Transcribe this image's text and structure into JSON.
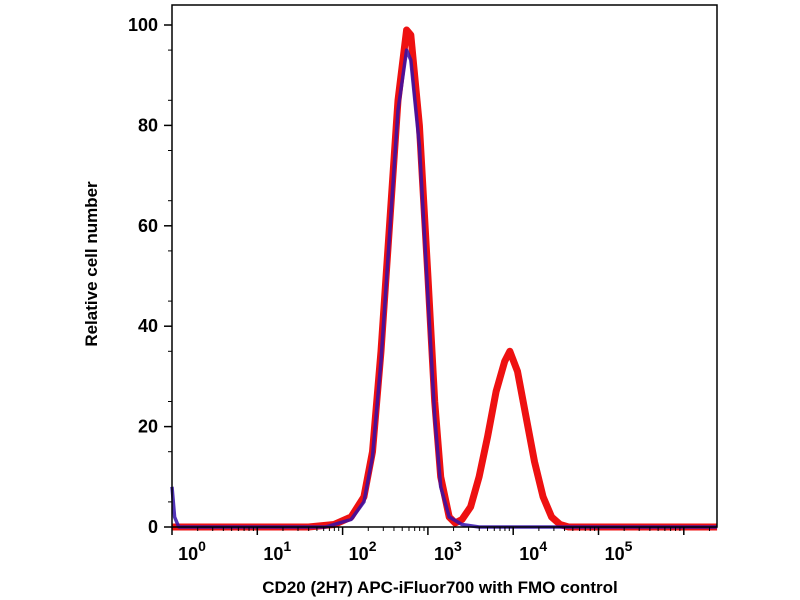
{
  "chart_data": {
    "type": "line",
    "title": "",
    "xlabel": "CD20 (2H7) APC-iFluor700 with FMO control",
    "ylabel": "Relative cell number",
    "xscale": "log",
    "xlim_log10": [
      0,
      6.39
    ],
    "ylim": [
      0,
      100
    ],
    "yticks": [
      "0",
      "20",
      "40",
      "60",
      "80",
      "100"
    ],
    "xticks": [
      {
        "base": "10",
        "exp": "0"
      },
      {
        "base": "10",
        "exp": "1"
      },
      {
        "base": "10",
        "exp": "2"
      },
      {
        "base": "10",
        "exp": "3"
      },
      {
        "base": "10",
        "exp": "4"
      },
      {
        "base": "10",
        "exp": "5"
      }
    ],
    "grid": false,
    "series": [
      {
        "name": "CD20 (2H7) APC-iFluor700",
        "color": "#ee1111",
        "points_log10x_y": [
          [
            0,
            0
          ],
          [
            1.6,
            0
          ],
          [
            1.9,
            0.5
          ],
          [
            2.1,
            2
          ],
          [
            2.25,
            6
          ],
          [
            2.35,
            15
          ],
          [
            2.45,
            35
          ],
          [
            2.55,
            60
          ],
          [
            2.65,
            85
          ],
          [
            2.75,
            99
          ],
          [
            2.8,
            98
          ],
          [
            2.9,
            80
          ],
          [
            3.0,
            50
          ],
          [
            3.08,
            25
          ],
          [
            3.15,
            10
          ],
          [
            3.25,
            2
          ],
          [
            3.32,
            0.8
          ],
          [
            3.4,
            1.5
          ],
          [
            3.5,
            4
          ],
          [
            3.6,
            10
          ],
          [
            3.7,
            18
          ],
          [
            3.8,
            27
          ],
          [
            3.9,
            33
          ],
          [
            3.96,
            35
          ],
          [
            4.05,
            31
          ],
          [
            4.15,
            22
          ],
          [
            4.25,
            13
          ],
          [
            4.35,
            6
          ],
          [
            4.45,
            2
          ],
          [
            4.55,
            0.5
          ],
          [
            4.65,
            0
          ],
          [
            6.39,
            0
          ]
        ]
      },
      {
        "name": "FMO control",
        "color": "#3311aa",
        "points_log10x_y": [
          [
            0,
            8
          ],
          [
            0.03,
            2
          ],
          [
            0.08,
            0
          ],
          [
            1.8,
            0
          ],
          [
            2.1,
            1.5
          ],
          [
            2.25,
            5
          ],
          [
            2.35,
            14
          ],
          [
            2.45,
            33
          ],
          [
            2.55,
            58
          ],
          [
            2.65,
            83
          ],
          [
            2.75,
            95
          ],
          [
            2.8,
            93
          ],
          [
            2.9,
            76
          ],
          [
            3.0,
            46
          ],
          [
            3.08,
            22
          ],
          [
            3.15,
            8
          ],
          [
            3.25,
            2
          ],
          [
            3.4,
            0.5
          ],
          [
            3.6,
            0
          ],
          [
            6.39,
            0
          ]
        ]
      }
    ]
  }
}
